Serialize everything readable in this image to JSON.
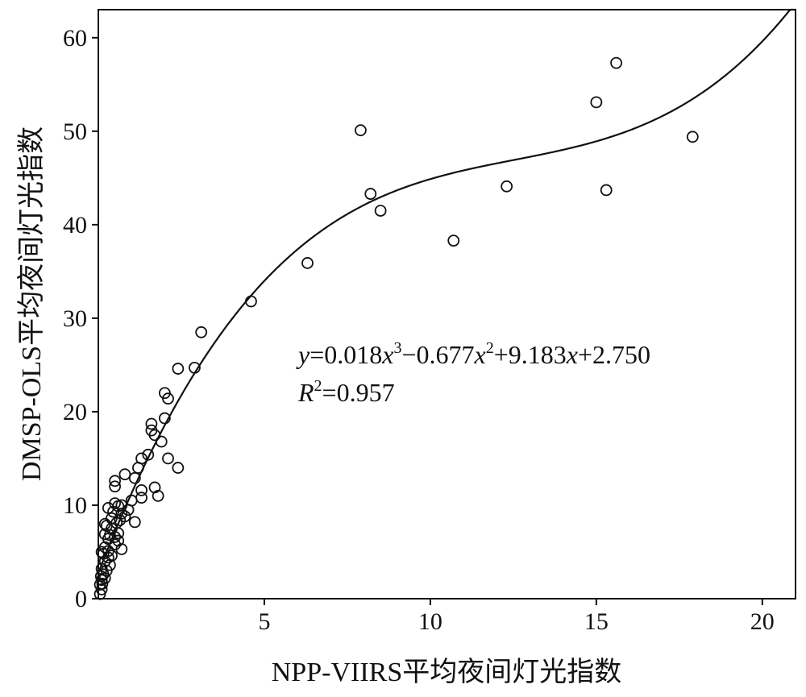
{
  "chart_data": {
    "type": "scatter",
    "xlabel": "NPP-VIIRS平均夜间灯光指数",
    "ylabel": "DMSP-OLS平均夜间灯光指数",
    "xlim": [
      0,
      21
    ],
    "ylim": [
      0,
      63
    ],
    "xticks": [
      "5",
      "10",
      "15",
      "20"
    ],
    "yticks": [
      "0",
      "10",
      "20",
      "30",
      "40",
      "50",
      "60"
    ],
    "grid": false,
    "fit": {
      "type": "cubic",
      "coefficients": [
        0.018,
        -0.677,
        9.183,
        2.75
      ],
      "r2": 0.957,
      "equation": {
        "y": "y",
        "p1": "=0.018",
        "x1": "x",
        "e3": "3",
        "p2": "−0.677",
        "x2": "x",
        "e2": "2",
        "p3": "+9.183",
        "x3": "x",
        "p4": "+2.750",
        "r": "R",
        "r_exp": "2",
        "r_val": "=0.957"
      }
    },
    "points": [
      [
        15.6,
        57.3
      ],
      [
        15.0,
        53.1
      ],
      [
        17.9,
        49.4
      ],
      [
        7.9,
        50.1
      ],
      [
        8.2,
        43.3
      ],
      [
        8.5,
        41.5
      ],
      [
        15.3,
        43.7
      ],
      [
        12.3,
        44.1
      ],
      [
        10.7,
        38.3
      ],
      [
        6.3,
        35.9
      ],
      [
        4.6,
        31.8
      ],
      [
        3.1,
        28.5
      ],
      [
        2.9,
        24.7
      ],
      [
        2.4,
        24.6
      ],
      [
        2.0,
        22.0
      ],
      [
        2.1,
        21.4
      ],
      [
        2.0,
        19.3
      ],
      [
        1.6,
        18.7
      ],
      [
        1.6,
        18.0
      ],
      [
        1.7,
        17.5
      ],
      [
        1.9,
        16.8
      ],
      [
        1.5,
        15.4
      ],
      [
        1.3,
        15.0
      ],
      [
        2.1,
        15.0
      ],
      [
        2.4,
        14.0
      ],
      [
        1.2,
        14.0
      ],
      [
        1.1,
        12.9
      ],
      [
        0.5,
        12.6
      ],
      [
        0.5,
        12.0
      ],
      [
        0.8,
        13.3
      ],
      [
        1.7,
        11.9
      ],
      [
        1.3,
        11.6
      ],
      [
        1.3,
        10.8
      ],
      [
        1.8,
        11.0
      ],
      [
        1.0,
        10.5
      ],
      [
        0.7,
        10.0
      ],
      [
        0.6,
        9.9
      ],
      [
        0.3,
        9.7
      ],
      [
        0.5,
        10.2
      ],
      [
        0.7,
        9.1
      ],
      [
        0.8,
        8.8
      ],
      [
        1.1,
        8.2
      ],
      [
        0.2,
        8.0
      ],
      [
        0.4,
        7.5
      ],
      [
        0.6,
        7.0
      ],
      [
        0.6,
        6.2
      ],
      [
        0.5,
        5.8
      ],
      [
        0.7,
        5.3
      ],
      [
        0.3,
        6.4
      ],
      [
        0.2,
        5.5
      ],
      [
        0.1,
        5.0
      ],
      [
        0.3,
        4.4
      ],
      [
        0.2,
        4.0
      ],
      [
        0.35,
        3.6
      ],
      [
        0.1,
        3.2
      ],
      [
        0.15,
        2.6
      ],
      [
        0.1,
        2.0
      ],
      [
        0.05,
        1.5
      ],
      [
        0.1,
        1.0
      ],
      [
        0.05,
        0.5
      ],
      [
        0.25,
        7.8
      ],
      [
        0.4,
        8.6
      ],
      [
        0.35,
        6.8
      ],
      [
        0.45,
        9.3
      ],
      [
        0.2,
        6.9
      ],
      [
        0.15,
        4.8
      ],
      [
        0.3,
        5.1
      ],
      [
        0.55,
        8.1
      ],
      [
        0.25,
        3.0
      ],
      [
        0.08,
        2.4
      ],
      [
        0.12,
        1.6
      ],
      [
        0.2,
        2.2
      ],
      [
        0.9,
        9.5
      ],
      [
        0.65,
        8.4
      ],
      [
        0.4,
        4.6
      ],
      [
        0.5,
        6.6
      ]
    ]
  }
}
